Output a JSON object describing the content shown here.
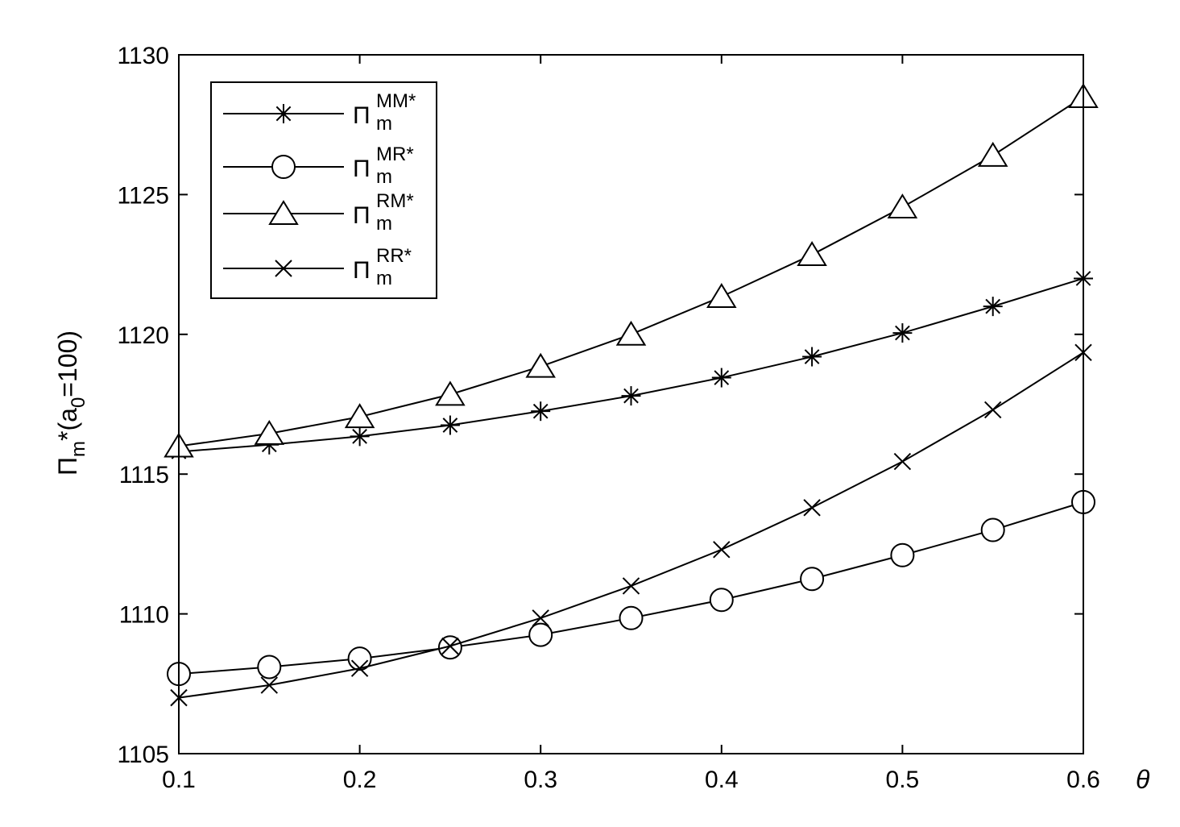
{
  "chart_data": {
    "type": "line",
    "xlabel": "θ",
    "ylabel": {
      "main": "Π",
      "sub": "m",
      "rest": "*(a",
      "sub2": "0",
      "rest2": "=100)"
    },
    "xlim": [
      0.1,
      0.6
    ],
    "ylim": [
      1105,
      1130
    ],
    "x_ticks": [
      0.1,
      0.2,
      0.3,
      0.4,
      0.5,
      0.6
    ],
    "x_tick_labels": [
      "0.1",
      "0.2",
      "0.3",
      "0.4",
      "0.5",
      "0.6"
    ],
    "y_ticks": [
      1105,
      1110,
      1115,
      1120,
      1125,
      1130
    ],
    "y_tick_labels": [
      "1105",
      "1110",
      "1115",
      "1120",
      "1125",
      "1130"
    ],
    "grid": false,
    "legend_position": "top-left",
    "x": [
      0.1,
      0.15,
      0.2,
      0.25,
      0.3,
      0.35,
      0.4,
      0.45,
      0.5,
      0.55,
      0.6
    ],
    "series": [
      {
        "label_main": "Π",
        "label_sub": "m",
        "label_sup": "MM*",
        "marker": "asterisk",
        "values": [
          1115.8,
          1116.05,
          1116.35,
          1116.75,
          1117.25,
          1117.8,
          1118.45,
          1119.2,
          1120.05,
          1121.0,
          1122.0
        ]
      },
      {
        "label_main": "Π",
        "label_sub": "m",
        "label_sup": "MR*",
        "marker": "circle",
        "values": [
          1107.85,
          1108.1,
          1108.4,
          1108.8,
          1109.25,
          1109.85,
          1110.5,
          1111.25,
          1112.1,
          1113.0,
          1114.0
        ]
      },
      {
        "label_main": "Π",
        "label_sub": "m",
        "label_sup": "RM*",
        "marker": "triangle",
        "values": [
          1116.0,
          1116.45,
          1117.05,
          1117.85,
          1118.85,
          1120.0,
          1121.35,
          1122.85,
          1124.55,
          1126.4,
          1128.5
        ]
      },
      {
        "label_main": "Π",
        "label_sub": "m",
        "label_sup": "RR*",
        "marker": "x",
        "values": [
          1107.0,
          1107.45,
          1108.05,
          1108.85,
          1109.85,
          1111.0,
          1112.3,
          1113.8,
          1115.45,
          1117.3,
          1119.35
        ]
      }
    ]
  }
}
